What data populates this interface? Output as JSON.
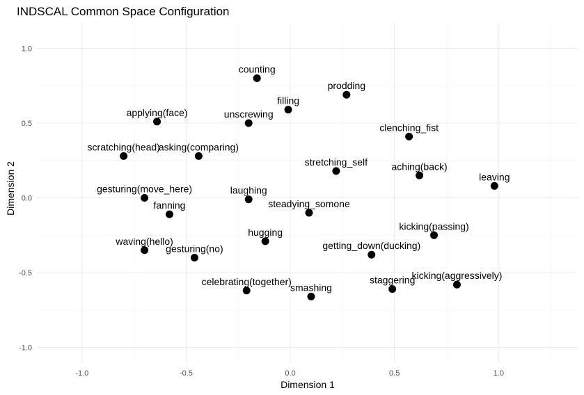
{
  "chart_data": {
    "type": "scatter",
    "title": "INDSCAL Common Space Configuration",
    "xlabel": "Dimension 1",
    "ylabel": "Dimension 2",
    "xlim": [
      -1.22,
      1.38
    ],
    "ylim": [
      -1.1,
      1.17
    ],
    "xticks": [
      -1.0,
      -0.5,
      0.0,
      0.5,
      1.0
    ],
    "xtick_labels": [
      "-1.0",
      "-0.5",
      "0.0",
      "0.5",
      "1.0"
    ],
    "yticks": [
      -1.0,
      -0.5,
      0.0,
      0.5,
      1.0
    ],
    "ytick_labels": [
      "-1.0",
      "-0.5",
      "0.0",
      "0.5",
      "1.0"
    ],
    "grid": true,
    "points": [
      {
        "label": "counting",
        "x": -0.16,
        "y": 0.8
      },
      {
        "label": "prodding",
        "x": 0.27,
        "y": 0.69
      },
      {
        "label": "filling",
        "x": -0.01,
        "y": 0.59
      },
      {
        "label": "applying(face)",
        "x": -0.64,
        "y": 0.51
      },
      {
        "label": "unscrewing",
        "x": -0.2,
        "y": 0.5
      },
      {
        "label": "clenching_fist",
        "x": 0.57,
        "y": 0.41
      },
      {
        "label": "scratching(head)",
        "x": -0.8,
        "y": 0.28
      },
      {
        "label": "asking(comparing)",
        "x": -0.44,
        "y": 0.28
      },
      {
        "label": "stretching_self",
        "x": 0.22,
        "y": 0.18
      },
      {
        "label": "aching(back)",
        "x": 0.62,
        "y": 0.15
      },
      {
        "label": "leaving",
        "x": 0.98,
        "y": 0.08
      },
      {
        "label": "gesturing(move_here)",
        "x": -0.7,
        "y": 0.0
      },
      {
        "label": "laughing",
        "x": -0.2,
        "y": -0.01
      },
      {
        "label": "fanning",
        "x": -0.58,
        "y": -0.11
      },
      {
        "label": "steadying_somone",
        "x": 0.09,
        "y": -0.1
      },
      {
        "label": "kicking(passing)",
        "x": 0.69,
        "y": -0.25
      },
      {
        "label": "hugging",
        "x": -0.12,
        "y": -0.29
      },
      {
        "label": "waving(hello)",
        "x": -0.7,
        "y": -0.35
      },
      {
        "label": "gesturing(no)",
        "x": -0.46,
        "y": -0.4
      },
      {
        "label": "getting_down(ducking)",
        "x": 0.39,
        "y": -0.38
      },
      {
        "label": "kicking(aggressively)",
        "x": 0.8,
        "y": -0.58
      },
      {
        "label": "staggering",
        "x": 0.49,
        "y": -0.61
      },
      {
        "label": "celebrating(together)",
        "x": -0.21,
        "y": -0.62
      },
      {
        "label": "smashing",
        "x": 0.1,
        "y": -0.66
      }
    ]
  }
}
